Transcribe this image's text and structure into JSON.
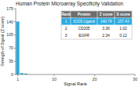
{
  "chart_data": {
    "type": "bar",
    "title": "Human Protein Microarray Specificity Validation",
    "x_label": "Signal Rank",
    "y_label": "Strength of Signal (Z score)",
    "x": [
      1,
      2,
      3
    ],
    "values": [
      140.79,
      3.36,
      2.34
    ],
    "color": "#29ABE2",
    "xlim": [
      0.5,
      30
    ],
    "xticks": [
      1,
      10,
      20,
      30
    ],
    "ylim": [
      0,
      175
    ],
    "yticks": [
      0,
      35,
      70,
      105,
      140,
      175
    ],
    "table": {
      "headers": [
        "Rank",
        "Protein",
        "Z score",
        "S score"
      ],
      "rows": [
        [
          "1",
          "ICOS Ligand",
          "140.79",
          "137.43"
        ],
        [
          "2",
          "CD205",
          "3.36",
          "1.02"
        ],
        [
          "3",
          "EGFR",
          "2.34",
          "0.12"
        ]
      ],
      "header_color": "#6d6d6d",
      "highlight_color": "#29ABE2"
    }
  }
}
